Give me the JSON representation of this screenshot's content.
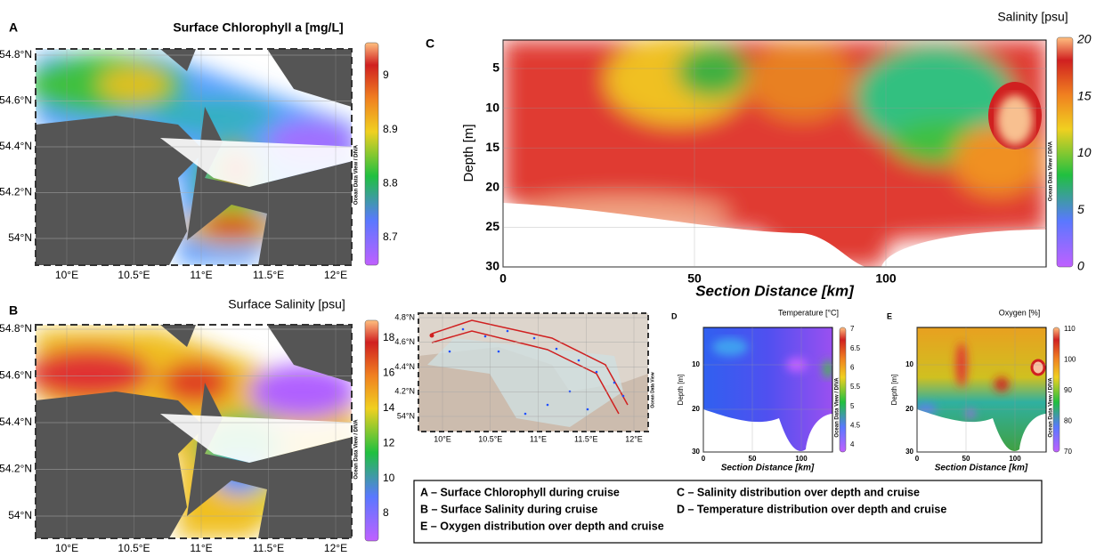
{
  "panels": [
    {
      "letter": "A",
      "title": "Surface Chlorophyll a [mg/L]",
      "yticks": [
        "54.8°N",
        "54.6°N",
        "54.4°N",
        "54.2°N",
        "54°N"
      ],
      "xticks": [
        "10°E",
        "10.5°E",
        "11°E",
        "11.5°E",
        "12°E"
      ],
      "cbar_ticks": [
        "9",
        "8.9",
        "8.8",
        "8.7"
      ],
      "watermark": "Ocean Data View / DIVA"
    },
    {
      "letter": "B",
      "title": "Surface Salinity [psu]",
      "yticks": [
        "54.8°N",
        "54.6°N",
        "54.4°N",
        "54.2°N",
        "54°N"
      ],
      "xticks": [
        "10°E",
        "10.5°E",
        "11°E",
        "11.5°E",
        "12°E"
      ],
      "cbar_ticks": [
        "18",
        "16",
        "14",
        "12",
        "10",
        "8"
      ],
      "watermark": "Ocean Data View / DIVA"
    },
    {
      "letter": "C",
      "title": "Salinity [psu]",
      "yticks": [
        "5",
        "10",
        "15",
        "20",
        "25",
        "30"
      ],
      "xticks": [
        "0",
        "50",
        "100"
      ],
      "xlabel": "Section Distance [km]",
      "ylabel": "Depth [m]",
      "cbar_ticks": [
        "20",
        "15",
        "10",
        "5",
        "0"
      ],
      "watermark": "Ocean Data View / DIVA"
    },
    {
      "yticks": [
        "4.8°N",
        "4.6°N",
        "4.4°N",
        "4.2°N",
        "54°N"
      ],
      "xticks": [
        "10°E",
        "10.5°E",
        "11°E",
        "11.5°E",
        "12°E"
      ],
      "watermark": "Ocean Data View"
    },
    {
      "letter": "D",
      "title": "Temperature [°C]",
      "yticks": [
        "10",
        "20",
        "30"
      ],
      "xticks": [
        "0",
        "50",
        "100"
      ],
      "xlabel": "Section Distance [km]",
      "ylabel": "Depth [m]",
      "cbar_ticks": [
        "7",
        "6.5",
        "6",
        "5.5",
        "5",
        "4.5",
        "4"
      ],
      "watermark": "Ocean Data View / DIVA"
    },
    {
      "letter": "E",
      "title": "Oxygen [%]",
      "yticks": [
        "10",
        "20",
        "30"
      ],
      "xticks": [
        "0",
        "50",
        "100"
      ],
      "xlabel": "Section Distance [km]",
      "ylabel": "Depth [m]",
      "cbar_ticks": [
        "110",
        "100",
        "90",
        "80",
        "70"
      ],
      "watermark": "Ocean Data View / DIVA"
    }
  ],
  "legend": [
    "A – Surface Chlorophyll during cruise",
    "B – Surface Salinity during cruise",
    "E – Oxygen distribution over depth and cruise",
    "C – Salinity distribution over depth and cruise",
    "D – Temperature distribution over depth and cruise"
  ]
}
